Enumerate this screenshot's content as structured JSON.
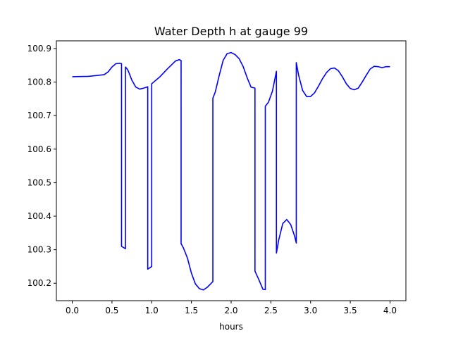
{
  "chart_data": {
    "type": "line",
    "title": "Water Depth h at gauge 99",
    "xlabel": "hours",
    "ylabel": "",
    "xlim": [
      -0.2,
      4.2
    ],
    "ylim": [
      100.148,
      100.923
    ],
    "xticks": [
      0.0,
      0.5,
      1.0,
      1.5,
      2.0,
      2.5,
      3.0,
      3.5,
      4.0
    ],
    "xtick_labels": [
      "0.0",
      "0.5",
      "1.0",
      "1.5",
      "2.0",
      "2.5",
      "3.0",
      "3.5",
      "4.0"
    ],
    "yticks": [
      100.2,
      100.3,
      100.4,
      100.5,
      100.6,
      100.7,
      100.8,
      100.9
    ],
    "ytick_labels": [
      "100.2",
      "100.3",
      "100.4",
      "100.5",
      "100.6",
      "100.7",
      "100.8",
      "100.9"
    ],
    "grid": false,
    "legend": false,
    "series": [
      {
        "color": "#0000ff",
        "x": [
          0.0,
          0.2,
          0.4,
          0.45,
          0.5,
          0.55,
          0.6,
          0.62,
          0.62,
          0.67,
          0.67,
          0.7,
          0.75,
          0.8,
          0.85,
          0.9,
          0.95,
          0.95,
          1.0,
          1.0,
          1.1,
          1.2,
          1.3,
          1.35,
          1.37,
          1.37,
          1.4,
          1.45,
          1.5,
          1.55,
          1.6,
          1.65,
          1.7,
          1.75,
          1.77,
          1.77,
          1.8,
          1.85,
          1.9,
          1.95,
          2.0,
          2.05,
          2.1,
          2.15,
          2.2,
          2.25,
          2.3,
          2.3,
          2.35,
          2.4,
          2.43,
          2.43,
          2.47,
          2.52,
          2.57,
          2.57,
          2.6,
          2.65,
          2.7,
          2.75,
          2.8,
          2.82,
          2.82,
          2.85,
          2.9,
          2.95,
          3.0,
          3.05,
          3.1,
          3.15,
          3.2,
          3.25,
          3.3,
          3.35,
          3.4,
          3.45,
          3.5,
          3.55,
          3.6,
          3.65,
          3.7,
          3.75,
          3.8,
          3.85,
          3.9,
          3.95,
          4.0
        ],
        "y": [
          100.816,
          100.817,
          100.822,
          100.83,
          100.845,
          100.855,
          100.856,
          100.855,
          100.31,
          100.303,
          100.845,
          100.836,
          100.806,
          100.785,
          100.779,
          100.782,
          100.786,
          100.242,
          100.25,
          100.795,
          100.815,
          100.84,
          100.863,
          100.867,
          100.864,
          100.318,
          100.305,
          100.275,
          100.23,
          100.198,
          100.184,
          100.18,
          100.188,
          100.2,
          100.205,
          100.752,
          100.77,
          100.82,
          100.865,
          100.885,
          100.888,
          100.882,
          100.87,
          100.847,
          100.814,
          100.785,
          100.782,
          100.236,
          100.21,
          100.182,
          100.181,
          100.728,
          100.74,
          100.773,
          100.832,
          100.29,
          100.33,
          100.378,
          100.39,
          100.375,
          100.34,
          100.32,
          100.858,
          100.82,
          100.775,
          100.757,
          100.757,
          100.768,
          100.788,
          100.81,
          100.828,
          100.84,
          100.842,
          100.834,
          100.816,
          100.795,
          100.781,
          100.777,
          100.782,
          100.8,
          100.82,
          100.839,
          100.847,
          100.846,
          100.843,
          100.846,
          100.846
        ]
      }
    ]
  }
}
